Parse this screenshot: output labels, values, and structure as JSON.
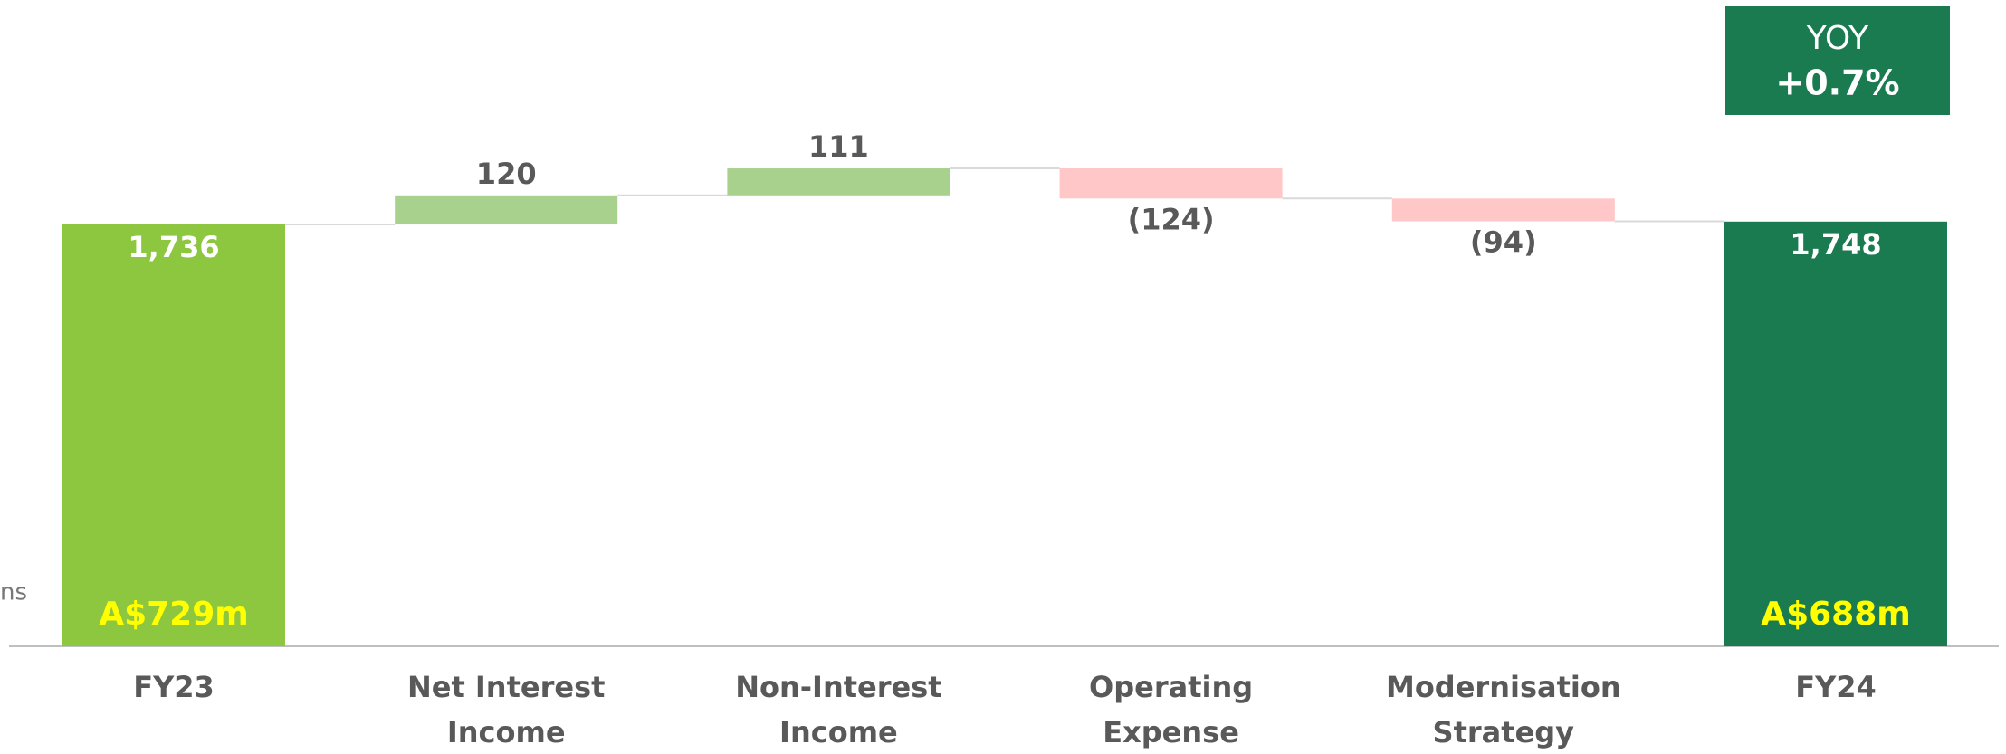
{
  "chart_data": {
    "type": "waterfall",
    "categories": [
      [
        "FY23"
      ],
      [
        "Net Interest",
        "Income"
      ],
      [
        "Non-Interest",
        "Income"
      ],
      [
        "Operating",
        "Expense"
      ],
      [
        "Modernisation",
        "Strategy"
      ],
      [
        "FY24"
      ]
    ],
    "values": [
      1736,
      120,
      111,
      -124,
      -94,
      1748
    ],
    "value_labels": [
      "1,736",
      "120",
      "111",
      "(124)",
      "(94)",
      "1,748"
    ],
    "measure": [
      "total",
      "relative",
      "relative",
      "relative",
      "relative",
      "total"
    ],
    "colors": [
      "#8dc63f",
      "#a9d18e",
      "#a9d18e",
      "#ffc7c7",
      "#ffc7c7",
      "#1a7a50"
    ],
    "bar_annotations": [
      "A$729m",
      null,
      null,
      null,
      null,
      "A$688m"
    ],
    "axis_label": "ns",
    "callout": {
      "title": "YOY",
      "value": "+0.7%"
    },
    "ylim": [
      0,
      2660
    ]
  }
}
